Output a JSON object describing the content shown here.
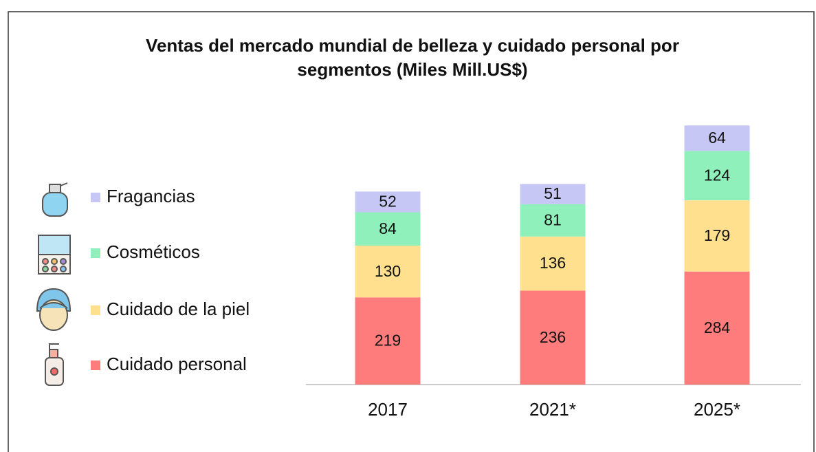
{
  "chart_data": {
    "type": "stacked_bar",
    "title": [
      "Ventas del mercado mundial de belleza y cuidado personal por",
      "segmentos (Miles Mill.US$)"
    ],
    "categories": [
      "2017",
      "2021*",
      "2025*"
    ],
    "series": [
      {
        "name": "Cuidado personal",
        "color": "#ff7c7c",
        "values": [
          219,
          236,
          284
        ]
      },
      {
        "name": "Cuidado de la piel",
        "color": "#ffe08e",
        "values": [
          130,
          136,
          179
        ]
      },
      {
        "name": "Cosméticos",
        "color": "#90f0bb",
        "values": [
          84,
          81,
          124
        ]
      },
      {
        "name": "Fragancias",
        "color": "#c7c7f5",
        "values": [
          52,
          51,
          64
        ]
      }
    ],
    "ylim": [
      0,
      700
    ],
    "legend": "left"
  }
}
